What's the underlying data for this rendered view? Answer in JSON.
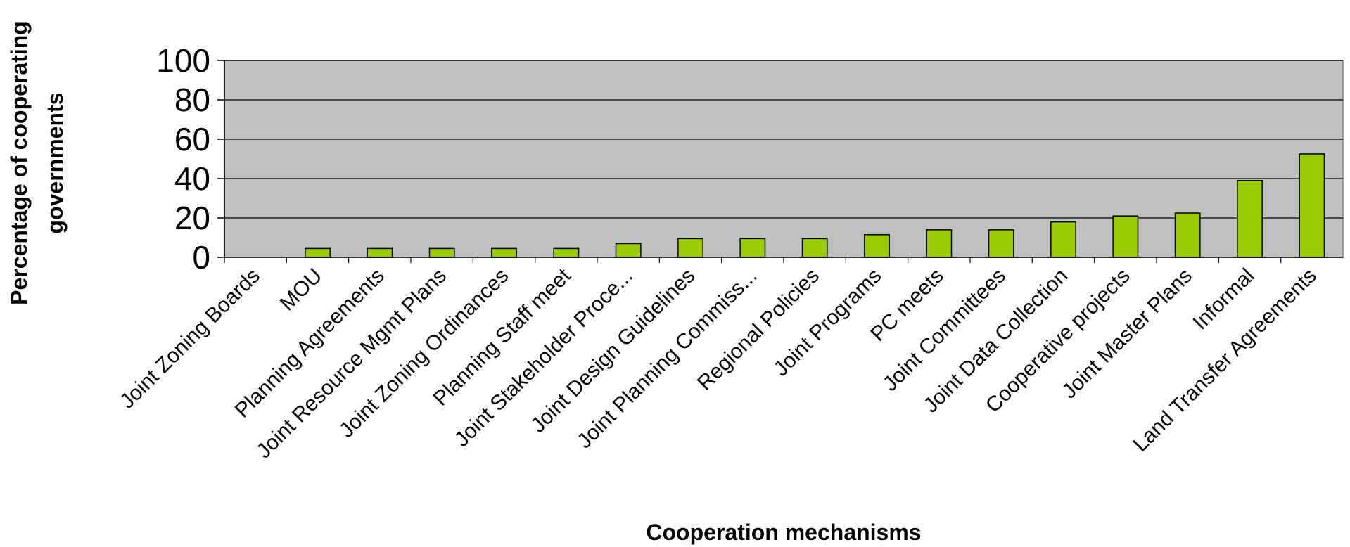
{
  "chart_data": {
    "type": "bar",
    "title": "",
    "xlabel": "Cooperation mechanisms",
    "ylabel_lines": [
      "Percentage of cooperating",
      "governments"
    ],
    "ylim": [
      0,
      100
    ],
    "yticks": [
      0,
      20,
      40,
      60,
      80,
      100
    ],
    "grid": true,
    "legend": "none",
    "categories": [
      "Joint Zoning Boards",
      "MOU",
      "Planning Agreements",
      "Joint Resource Mgmt Plans",
      "Joint Zoning Ordinances",
      "Planning Staff meet",
      "Joint Stakeholder Proce...",
      "Joint Design Guidelines",
      "Joint Planning Commiss...",
      "Regional Policies",
      "Joint Programs",
      "PC meets",
      "Joint Committees",
      "Joint Data Collection",
      "Cooperative projects",
      "Joint Master Plans",
      "Informal",
      "Land Transfer Agreements"
    ],
    "values": [
      0,
      4.5,
      4.5,
      4.5,
      4.5,
      4.5,
      7,
      9.5,
      9.5,
      9.5,
      11.5,
      14,
      14,
      18,
      21,
      22.5,
      39,
      52.5
    ],
    "colors": {
      "bar_fill": "#99cc00",
      "bar_stroke": "#000000",
      "plot_background": "#c0c0c0",
      "gridline": "#000000"
    }
  }
}
